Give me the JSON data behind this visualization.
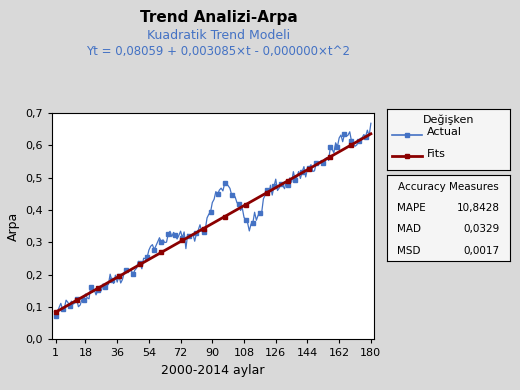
{
  "title": "Trend Analizi-Arpa",
  "subtitle1": "Kuadratik Trend Modeli",
  "subtitle2": "Yt = 0,08059 + 0,003085×t - 0,000000×t^2",
  "xlabel": "2000-2014 aylar",
  "ylabel": "Arpa",
  "a0": 0.08059,
  "a1": 0.003085,
  "a2": 0.0,
  "n_points": 180,
  "ylim": [
    0.0,
    0.7
  ],
  "xlim": [
    1,
    180
  ],
  "xticks": [
    1,
    18,
    36,
    54,
    72,
    90,
    108,
    126,
    144,
    162,
    180
  ],
  "yticks": [
    0.0,
    0.1,
    0.2,
    0.3,
    0.4,
    0.5,
    0.6,
    0.7
  ],
  "actual_color": "#4472C4",
  "fit_color": "#8B0000",
  "bg_color": "#D9D9D9",
  "plot_bg_color": "#FFFFFF",
  "legend_label_actual": "Actual",
  "legend_label_fit": "Fits",
  "legend_title": "Değişken",
  "accuracy_title": "Accuracy Measures",
  "mape_label": "MAPE",
  "mape_value": "10,8428",
  "mad_label": "MAD",
  "mad_value": "0,0329",
  "msd_label": "MSD",
  "msd_value": "0,0017",
  "seed": 42
}
